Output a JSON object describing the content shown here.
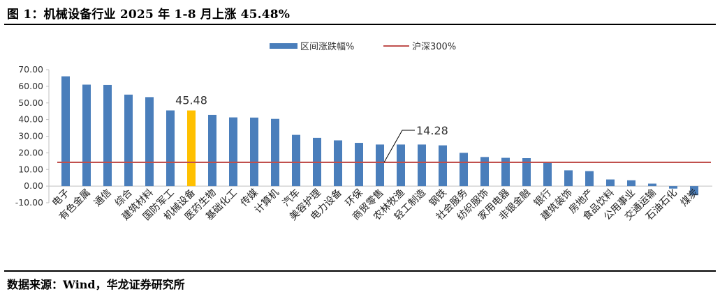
{
  "title": "图 1：机械设备行业 2025 年 1-8 月上涨 45.48%",
  "source": "数据来源：Wind，华龙证券研究所",
  "colors": {
    "bar": "#4a7ebb",
    "highlight": "#ffc000",
    "line": "#c0504d"
  },
  "chart_data": {
    "type": "bar",
    "categories": [
      "电子",
      "有色金属",
      "通信",
      "综合",
      "建筑材料",
      "国防军工",
      "机械设备",
      "医药生物",
      "基础化工",
      "传媒",
      "计算机",
      "汽车",
      "美容护理",
      "电力设备",
      "环保",
      "商贸零售",
      "农林牧渔",
      "轻工制造",
      "钢铁",
      "社会服务",
      "纺织服饰",
      "家用电器",
      "非银金融",
      "银行",
      "建筑装饰",
      "房地产",
      "食品饮料",
      "公用事业",
      "交通运输",
      "石油石化",
      "煤炭"
    ],
    "series": [
      {
        "name": "区间涨跌幅%",
        "values": [
          66.0,
          61.0,
          60.8,
          55.0,
          53.5,
          45.5,
          45.48,
          42.8,
          41.3,
          41.2,
          40.4,
          30.8,
          29.0,
          27.5,
          26.0,
          25.0,
          25.0,
          25.0,
          24.5,
          20.0,
          17.5,
          17.0,
          16.8,
          14.0,
          9.5,
          9.0,
          4.0,
          3.5,
          1.5,
          -1.5,
          -5.5
        ]
      }
    ],
    "highlight_category": "机械设备",
    "reference_line": {
      "name": "沪深300%",
      "value": 14.28,
      "label": "14.28"
    },
    "highlight_label": "45.48",
    "yticks": [
      "70.00",
      "60.00",
      "50.00",
      "40.00",
      "30.00",
      "20.00",
      "10.00",
      "0.00",
      "-10.00"
    ],
    "ylim": [
      -10,
      70
    ],
    "grid": false,
    "legend": "top-center"
  }
}
